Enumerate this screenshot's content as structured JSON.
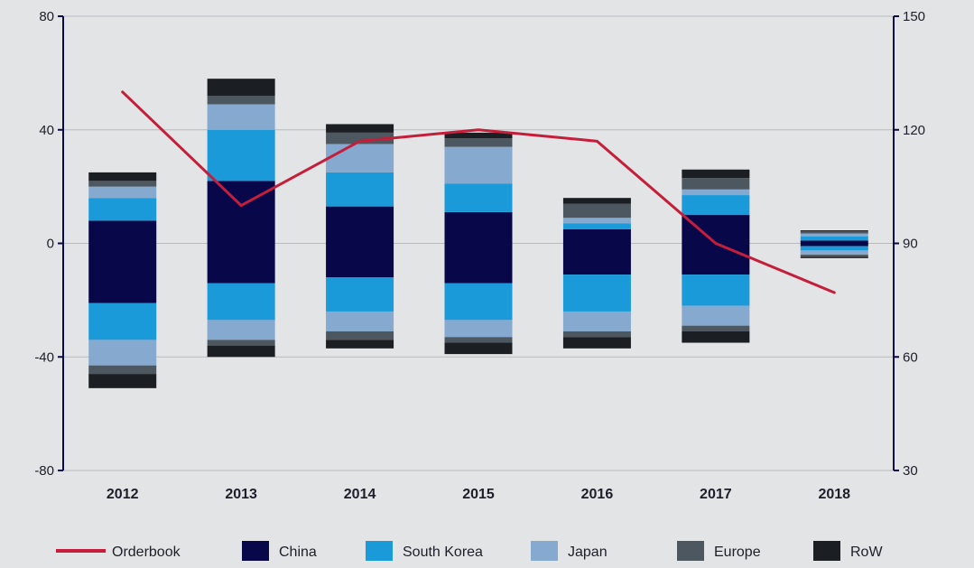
{
  "chart_data": {
    "type": "bar",
    "stacked": true,
    "categories": [
      "2012",
      "2013",
      "2014",
      "2015",
      "2016",
      "2017",
      "2018"
    ],
    "series": [
      {
        "name": "China",
        "color": "#07074a",
        "pos": [
          8,
          22,
          13,
          11,
          5,
          10,
          1
        ],
        "neg": [
          -21,
          -14,
          -12,
          -14,
          -11,
          -11,
          -1
        ]
      },
      {
        "name": "South Korea",
        "color": "#1a9ad9",
        "pos": [
          8,
          18,
          12,
          10,
          2,
          7,
          1.5
        ],
        "neg": [
          -13,
          -13,
          -12,
          -13,
          -13,
          -11,
          -1.5
        ]
      },
      {
        "name": "Japan",
        "color": "#85a9cf",
        "pos": [
          4,
          9,
          10,
          13,
          2,
          2,
          1
        ],
        "neg": [
          -9,
          -7,
          -7,
          -6,
          -7,
          -7,
          -1.5
        ]
      },
      {
        "name": "Europe",
        "color": "#4d575f",
        "pos": [
          2,
          3,
          4,
          3,
          5,
          4,
          0.7
        ],
        "neg": [
          -3,
          -2,
          -3,
          -2,
          -2,
          -2,
          -0.7
        ]
      },
      {
        "name": "RoW",
        "color": "#1b1e22",
        "pos": [
          3,
          6,
          3,
          2,
          2,
          3,
          0.4
        ],
        "neg": [
          -5,
          -4,
          -3,
          -4,
          -4,
          -4,
          -0.5
        ]
      }
    ],
    "line": {
      "name": "Orderbook",
      "color": "#c41e3a",
      "axis": "right",
      "values": [
        130,
        100,
        117,
        120,
        117,
        90,
        77
      ]
    },
    "y_left": {
      "ylim": [
        -80,
        80
      ],
      "ticks": [
        "80",
        "40",
        "0",
        "-40",
        "-80"
      ]
    },
    "y_right": {
      "ylim": [
        30,
        150
      ],
      "ticks": [
        "150",
        "120",
        "90",
        "60",
        "30"
      ]
    },
    "legend": {
      "placement": "bottom",
      "items": [
        {
          "name": "Orderbook",
          "kind": "line",
          "color": "#c41e3a"
        },
        {
          "name": "China",
          "kind": "box",
          "color": "#07074a"
        },
        {
          "name": "South Korea",
          "kind": "box",
          "color": "#1a9ad9"
        },
        {
          "name": "Japan",
          "kind": "box",
          "color": "#85a9cf"
        },
        {
          "name": "Europe",
          "kind": "box",
          "color": "#4d575f"
        },
        {
          "name": "RoW",
          "kind": "box",
          "color": "#1b1e22"
        }
      ]
    },
    "grid": true
  }
}
